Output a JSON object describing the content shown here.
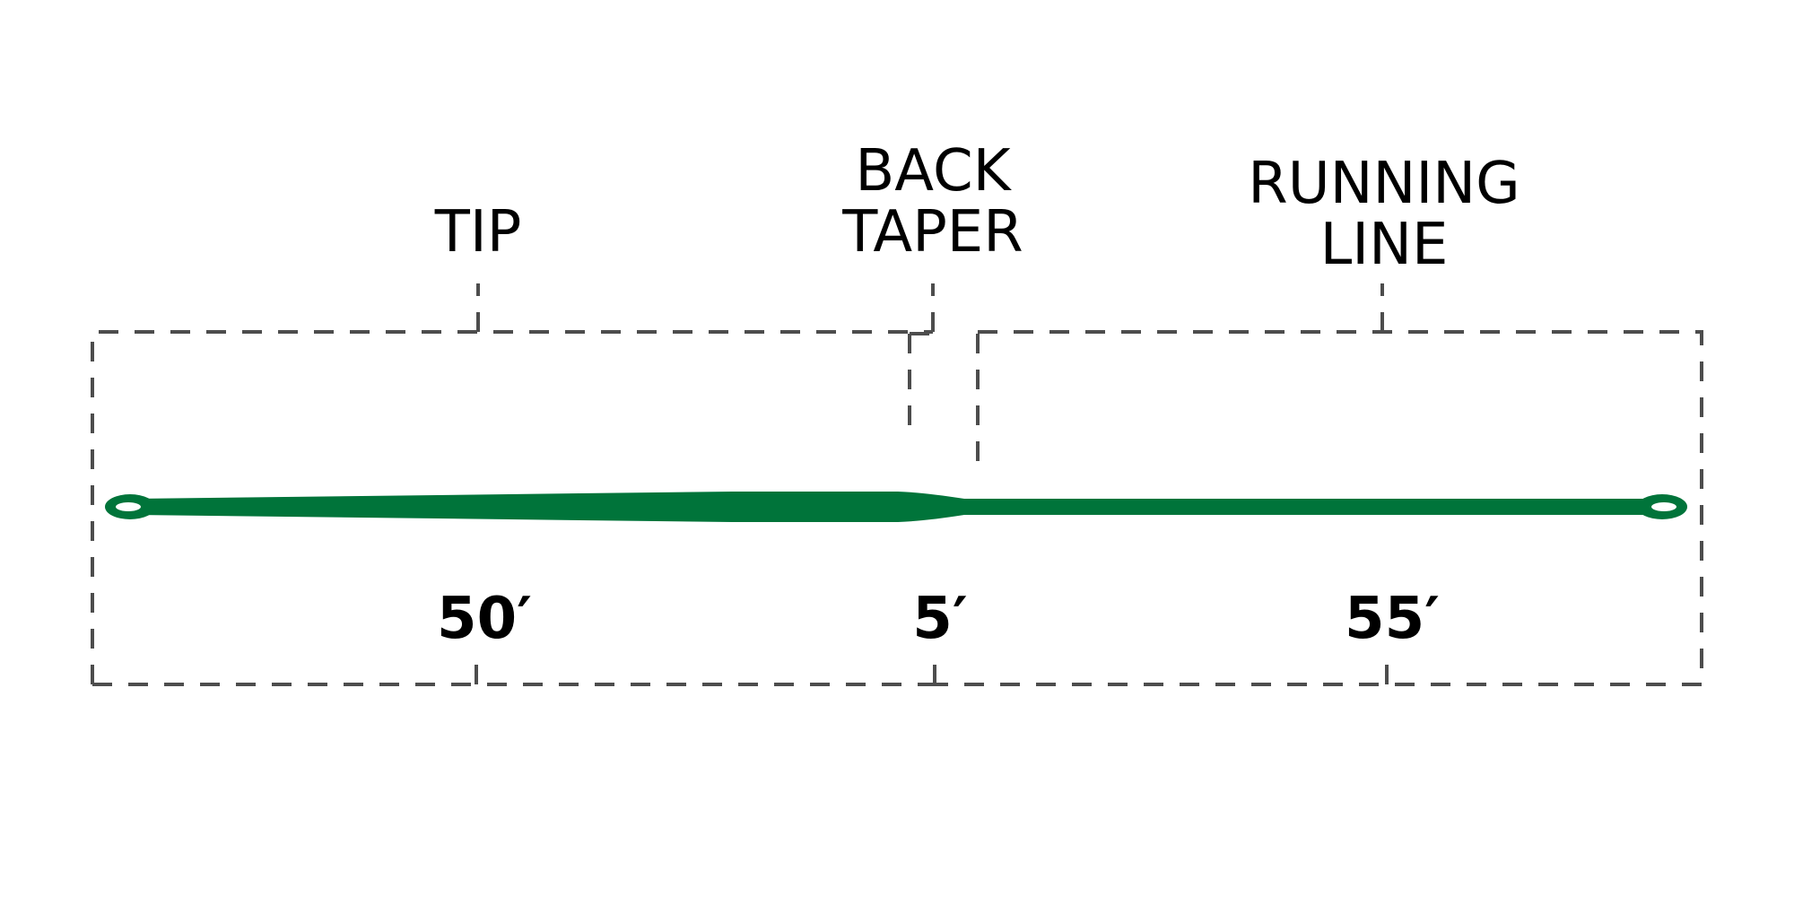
{
  "sections": [
    {
      "label_lines": [
        "TIP"
      ],
      "length": "50′"
    },
    {
      "label_lines": [
        "BACK",
        "TAPER"
      ],
      "length": "5′"
    },
    {
      "label_lines": [
        "RUNNING",
        "LINE"
      ],
      "length": "55′"
    }
  ],
  "colors": {
    "line": "#00743a",
    "dash": "#4d4d4d"
  }
}
